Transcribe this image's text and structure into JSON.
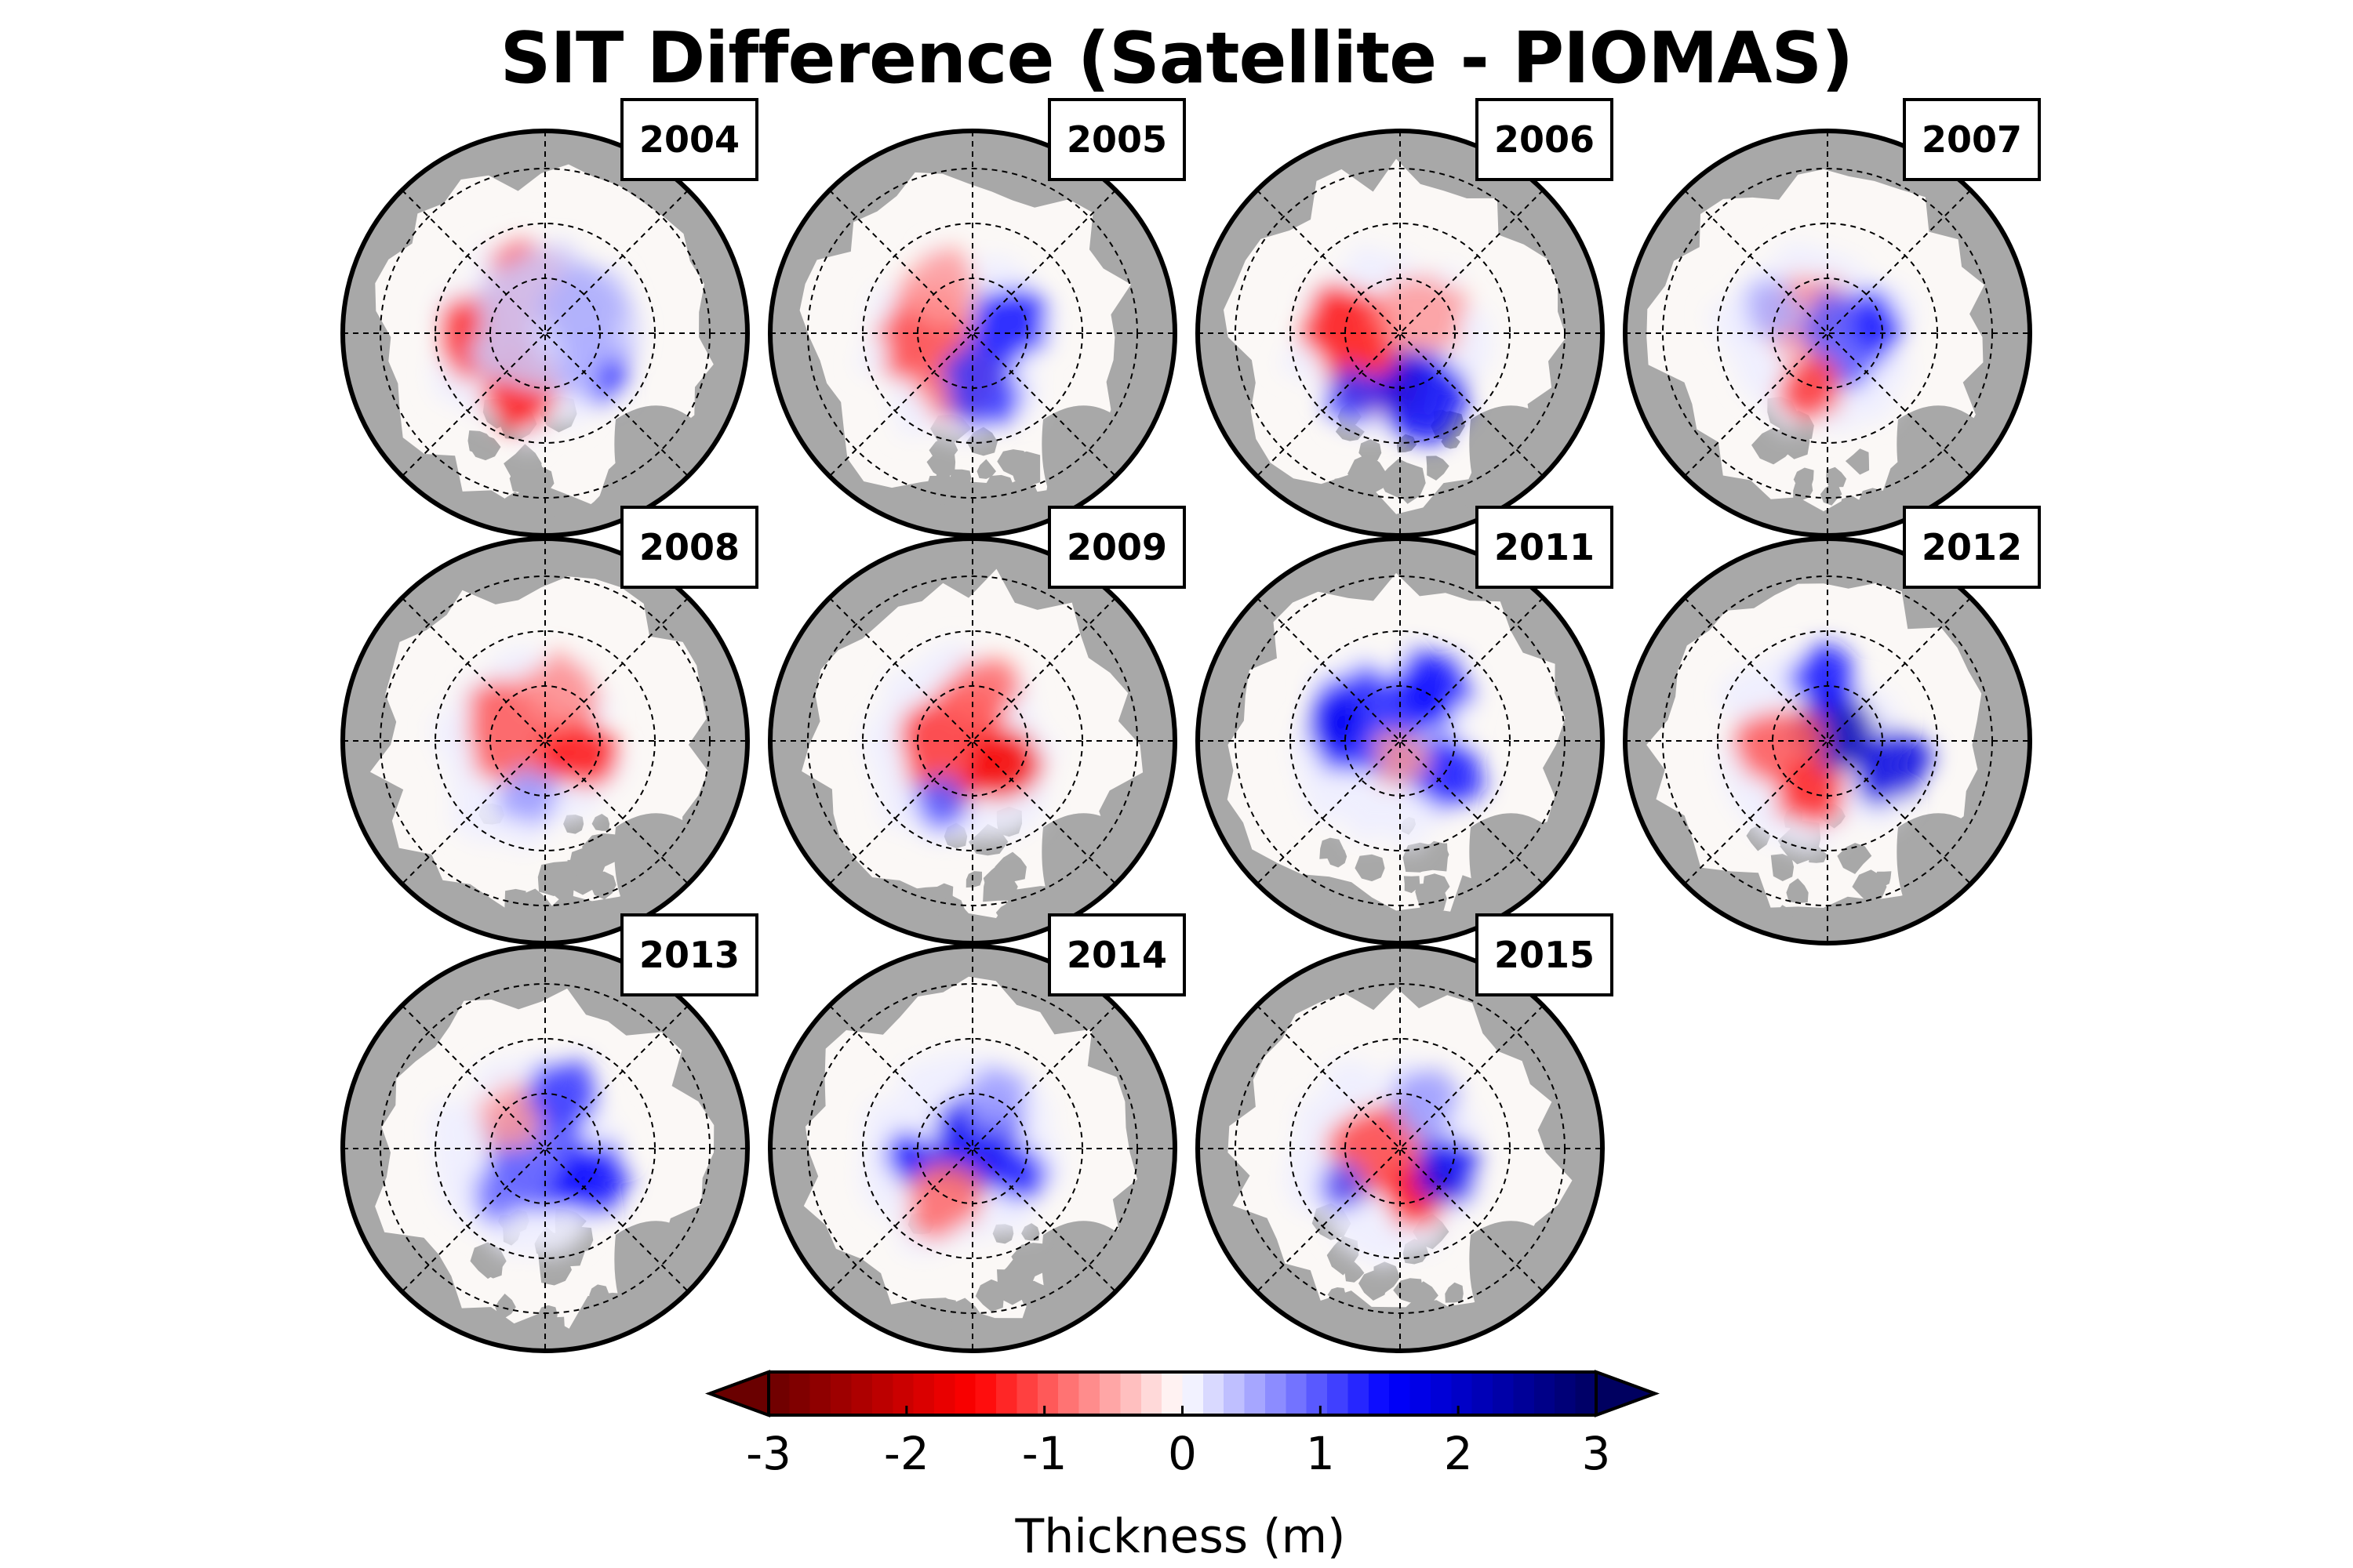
{
  "title": "SIT Difference (Satellite - PIOMAS)",
  "panels": [
    {
      "year": "2004",
      "pattern": [
        [
          -0.35,
          0.0,
          -1.3,
          0.5,
          0.2
        ],
        [
          -0.1,
          0.3,
          -1.1,
          0.45,
          0.18
        ],
        [
          -0.15,
          -0.35,
          -1.4,
          0.45,
          0.2
        ],
        [
          0.25,
          0.15,
          1.7,
          0.45,
          0.18
        ],
        [
          0.32,
          -0.2,
          1.5,
          0.4,
          0.2
        ],
        [
          0.05,
          0.05,
          0.3,
          0.8,
          0.2
        ]
      ]
    },
    {
      "year": "2005",
      "pattern": [
        [
          -0.3,
          0.0,
          -1.1,
          0.5,
          0.2
        ],
        [
          -0.1,
          -0.3,
          -0.9,
          0.45,
          0.18
        ],
        [
          0.22,
          0.05,
          1.4,
          0.4,
          0.2
        ],
        [
          0.05,
          -0.35,
          1.2,
          0.4,
          0.18
        ],
        [
          -0.2,
          0.3,
          -0.6,
          0.4,
          0.18
        ]
      ]
    },
    {
      "year": "2006",
      "pattern": [
        [
          -0.3,
          0.0,
          -1.4,
          0.5,
          0.22
        ],
        [
          -0.15,
          -0.25,
          -1.2,
          0.45,
          0.2
        ],
        [
          0.15,
          -0.4,
          1.6,
          0.5,
          0.14
        ],
        [
          -0.3,
          -0.4,
          1.2,
          0.3,
          0.12
        ],
        [
          0.15,
          0.1,
          -0.6,
          0.45,
          0.2
        ]
      ]
    },
    {
      "year": "2007",
      "pattern": [
        [
          -0.15,
          0.1,
          -0.7,
          0.45,
          0.2
        ],
        [
          0.15,
          0.0,
          1.0,
          0.5,
          0.18
        ],
        [
          -0.1,
          -0.35,
          -1.2,
          0.35,
          0.14
        ],
        [
          -0.35,
          0.15,
          0.5,
          0.3,
          0.15
        ],
        [
          0.3,
          0.05,
          1.3,
          0.3,
          0.12
        ]
      ]
    },
    {
      "year": "2008",
      "pattern": [
        [
          -0.2,
          0.05,
          -1.0,
          0.55,
          0.25
        ],
        [
          0.2,
          -0.05,
          -1.4,
          0.4,
          0.18
        ],
        [
          -0.1,
          -0.35,
          0.6,
          0.3,
          0.14
        ],
        [
          0.1,
          0.3,
          -0.7,
          0.4,
          0.18
        ]
      ]
    },
    {
      "year": "2009",
      "pattern": [
        [
          -0.1,
          0.0,
          -1.2,
          0.6,
          0.28
        ],
        [
          0.2,
          -0.15,
          -1.6,
          0.4,
          0.2
        ],
        [
          -0.2,
          -0.4,
          1.0,
          0.3,
          0.12
        ],
        [
          0.05,
          0.3,
          -0.9,
          0.4,
          0.18
        ]
      ]
    },
    {
      "year": "2011",
      "pattern": [
        [
          -0.15,
          0.1,
          1.3,
          0.6,
          0.28
        ],
        [
          0.2,
          0.35,
          1.5,
          0.4,
          0.18
        ],
        [
          0.3,
          -0.2,
          1.4,
          0.4,
          0.15
        ],
        [
          0.0,
          -0.1,
          -0.6,
          0.3,
          0.12
        ],
        [
          -0.4,
          0.1,
          1.6,
          0.3,
          0.15
        ]
      ]
    },
    {
      "year": "2012",
      "pattern": [
        [
          0.05,
          0.05,
          2.2,
          0.45,
          0.18
        ],
        [
          -0.3,
          -0.05,
          -1.0,
          0.45,
          0.2
        ],
        [
          -0.1,
          -0.35,
          -1.3,
          0.35,
          0.15
        ],
        [
          0.4,
          -0.15,
          1.8,
          0.4,
          0.14
        ],
        [
          0.0,
          0.4,
          1.4,
          0.35,
          0.14
        ]
      ]
    },
    {
      "year": "2013",
      "pattern": [
        [
          -0.05,
          0.0,
          1.0,
          0.6,
          0.28
        ],
        [
          0.3,
          -0.2,
          1.5,
          0.4,
          0.14
        ],
        [
          -0.2,
          0.2,
          -0.6,
          0.35,
          0.15
        ],
        [
          0.1,
          0.35,
          1.2,
          0.35,
          0.15
        ],
        [
          -0.3,
          -0.3,
          0.9,
          0.3,
          0.15
        ]
      ]
    },
    {
      "year": "2014",
      "pattern": [
        [
          0.0,
          0.0,
          1.6,
          0.5,
          0.22
        ],
        [
          -0.2,
          -0.3,
          -0.9,
          0.4,
          0.18
        ],
        [
          -0.4,
          -0.05,
          1.5,
          0.25,
          0.1
        ],
        [
          0.3,
          -0.15,
          1.3,
          0.3,
          0.12
        ],
        [
          0.15,
          0.3,
          0.6,
          0.35,
          0.16
        ]
      ]
    },
    {
      "year": "2015",
      "pattern": [
        [
          -0.15,
          0.0,
          -1.1,
          0.55,
          0.24
        ],
        [
          0.1,
          -0.3,
          -1.4,
          0.35,
          0.15
        ],
        [
          0.3,
          -0.15,
          1.6,
          0.35,
          0.12
        ],
        [
          0.15,
          0.3,
          0.6,
          0.35,
          0.15
        ],
        [
          -0.35,
          -0.25,
          1.0,
          0.25,
          0.12
        ]
      ]
    }
  ],
  "colorbar": {
    "min": -3,
    "max": 3,
    "ticks": [
      "-3",
      "-2",
      "-1",
      "0",
      "1",
      "2",
      "3"
    ],
    "label": "Thickness (m)",
    "colors": [
      "#6a0000",
      "#ff0000",
      "#ffffff",
      "#0000ff",
      "#000060"
    ]
  },
  "colors": {
    "land": "#a8a8a8",
    "ocean": "#fbf8f6",
    "outline": "#000000"
  }
}
